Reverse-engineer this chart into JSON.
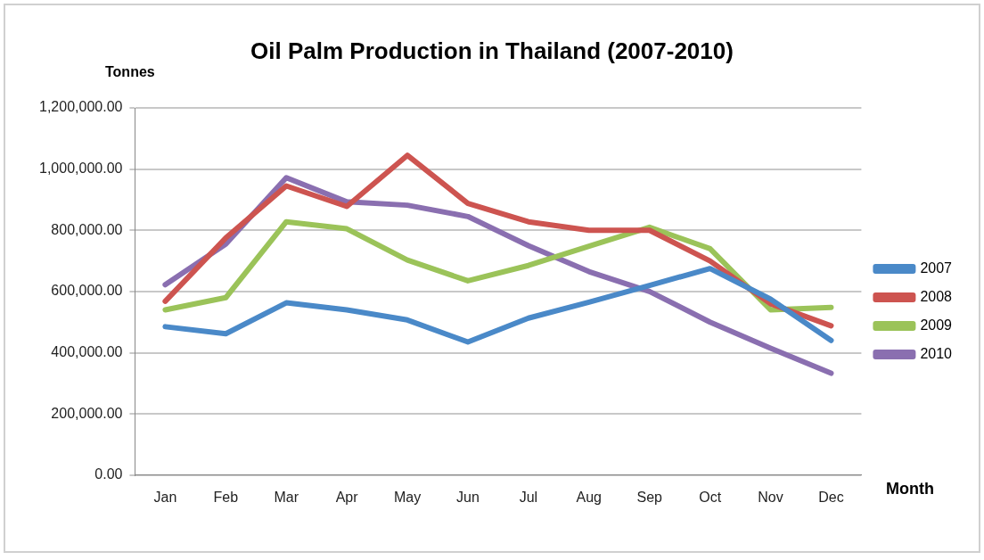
{
  "chart_data": {
    "type": "line",
    "title": "Oil Palm Production in Thailand (2007-2010)",
    "ylabel": "Tonnes",
    "xlabel": "Month",
    "categories": [
      "Jan",
      "Feb",
      "Mar",
      "Apr",
      "May",
      "Jun",
      "Jul",
      "Aug",
      "Sep",
      "Oct",
      "Nov",
      "Dec"
    ],
    "series": [
      {
        "name": "2007",
        "color": "#4a89c8",
        "values": [
          485000,
          462000,
          563000,
          540000,
          507000,
          435000,
          513000,
          565000,
          620000,
          675000,
          575000,
          440000
        ]
      },
      {
        "name": "2008",
        "color": "#cd5450",
        "values": [
          568000,
          775000,
          945000,
          878000,
          1045000,
          888000,
          828000,
          800000,
          800000,
          700000,
          560000,
          488000
        ]
      },
      {
        "name": "2009",
        "color": "#9bc359",
        "values": [
          540000,
          580000,
          828000,
          805000,
          703000,
          635000,
          685000,
          748000,
          810000,
          740000,
          540000,
          548000
        ]
      },
      {
        "name": "2010",
        "color": "#8a6fb0",
        "values": [
          622000,
          755000,
          972000,
          893000,
          882000,
          845000,
          750000,
          665000,
          600000,
          500000,
          415000,
          333000
        ]
      }
    ],
    "ylim": [
      0,
      1200000
    ],
    "yticks": [
      {
        "value": 0,
        "label": "0.00"
      },
      {
        "value": 200000,
        "label": "200,000.00"
      },
      {
        "value": 400000,
        "label": "400,000.00"
      },
      {
        "value": 600000,
        "label": "600,000.00"
      },
      {
        "value": 800000,
        "label": "800,000.00"
      },
      {
        "value": 1000000,
        "label": "1,000,000.00"
      },
      {
        "value": 1200000,
        "label": "1,200,000.00"
      }
    ],
    "grid": "y",
    "legend": "right",
    "marker": "none",
    "line_style": "solid"
  }
}
